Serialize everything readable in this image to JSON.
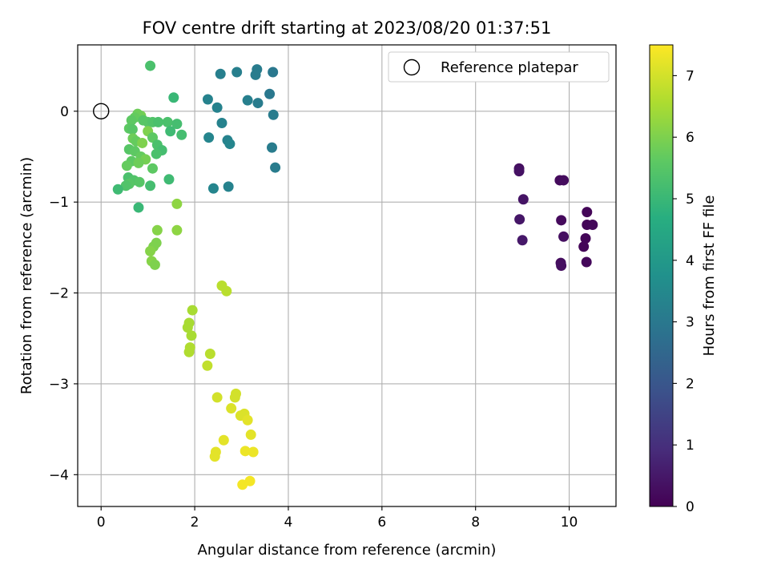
{
  "chart_data": {
    "type": "scatter",
    "title": "FOV centre drift starting at 2023/08/20 01:37:51",
    "xlabel": "Angular distance from reference (arcmin)",
    "ylabel": "Rotation from reference (arcmin)",
    "xlim": [
      -0.5,
      11
    ],
    "ylim": [
      -4.35,
      0.73
    ],
    "xticks": [
      0,
      2,
      4,
      6,
      8,
      10
    ],
    "yticks": [
      0,
      -1,
      -2,
      -3,
      -4
    ],
    "grid": true,
    "legend": {
      "placement": "top-right",
      "entries": [
        "Reference platepar"
      ]
    },
    "reference_point": {
      "x": 0,
      "y": 0
    },
    "colorbar": {
      "label": "Hours from first FF file",
      "range": [
        0,
        7.5
      ],
      "ticks": [
        0,
        1,
        2,
        3,
        4,
        5,
        6,
        7
      ],
      "colormap": "viridis"
    },
    "points": [
      {
        "x": 8.93,
        "y": -0.63,
        "h": 0.3
      },
      {
        "x": 8.93,
        "y": -0.66,
        "h": 0.35
      },
      {
        "x": 9.02,
        "y": -0.97,
        "h": 0.4
      },
      {
        "x": 8.94,
        "y": -1.19,
        "h": 0.45
      },
      {
        "x": 9.0,
        "y": -1.42,
        "h": 0.5
      },
      {
        "x": 9.8,
        "y": -0.76,
        "h": 0.2
      },
      {
        "x": 9.88,
        "y": -0.76,
        "h": 0.25
      },
      {
        "x": 9.83,
        "y": -1.2,
        "h": 0.2
      },
      {
        "x": 9.88,
        "y": -1.38,
        "h": 0.3
      },
      {
        "x": 9.82,
        "y": -1.67,
        "h": 0.25
      },
      {
        "x": 9.83,
        "y": -1.7,
        "h": 0.3
      },
      {
        "x": 10.38,
        "y": -1.11,
        "h": 0.1
      },
      {
        "x": 10.38,
        "y": -1.25,
        "h": 0.1
      },
      {
        "x": 10.5,
        "y": -1.25,
        "h": 0.15
      },
      {
        "x": 10.35,
        "y": -1.4,
        "h": 0.1
      },
      {
        "x": 10.31,
        "y": -1.49,
        "h": 0.1
      },
      {
        "x": 10.37,
        "y": -1.66,
        "h": 0.15
      },
      {
        "x": 2.55,
        "y": 0.41,
        "h": 3.2
      },
      {
        "x": 2.9,
        "y": 0.43,
        "h": 3.2
      },
      {
        "x": 3.33,
        "y": 0.46,
        "h": 3.1
      },
      {
        "x": 3.3,
        "y": 0.4,
        "h": 3.1
      },
      {
        "x": 3.67,
        "y": 0.43,
        "h": 3.0
      },
      {
        "x": 3.6,
        "y": 0.19,
        "h": 3.0
      },
      {
        "x": 3.13,
        "y": 0.12,
        "h": 3.2
      },
      {
        "x": 3.35,
        "y": 0.09,
        "h": 3.1
      },
      {
        "x": 2.28,
        "y": 0.13,
        "h": 3.3
      },
      {
        "x": 2.48,
        "y": 0.04,
        "h": 3.3
      },
      {
        "x": 3.68,
        "y": -0.04,
        "h": 3.1
      },
      {
        "x": 2.58,
        "y": -0.13,
        "h": 3.3
      },
      {
        "x": 2.3,
        "y": -0.29,
        "h": 3.4
      },
      {
        "x": 2.7,
        "y": -0.32,
        "h": 3.3
      },
      {
        "x": 2.75,
        "y": -0.36,
        "h": 3.4
      },
      {
        "x": 3.65,
        "y": -0.4,
        "h": 3.1
      },
      {
        "x": 3.72,
        "y": -0.62,
        "h": 3.1
      },
      {
        "x": 2.72,
        "y": -0.83,
        "h": 3.3
      },
      {
        "x": 2.4,
        "y": -0.85,
        "h": 3.4
      },
      {
        "x": 1.05,
        "y": 0.5,
        "h": 5.3
      },
      {
        "x": 1.55,
        "y": 0.15,
        "h": 5.0
      },
      {
        "x": 0.85,
        "y": -0.05,
        "h": 5.9
      },
      {
        "x": 0.78,
        "y": -0.03,
        "h": 5.8
      },
      {
        "x": 0.72,
        "y": -0.07,
        "h": 5.7
      },
      {
        "x": 0.65,
        "y": -0.1,
        "h": 5.6
      },
      {
        "x": 0.9,
        "y": -0.1,
        "h": 5.5
      },
      {
        "x": 1.0,
        "y": -0.12,
        "h": 5.5
      },
      {
        "x": 1.1,
        "y": -0.12,
        "h": 5.4
      },
      {
        "x": 1.22,
        "y": -0.12,
        "h": 5.3
      },
      {
        "x": 1.42,
        "y": -0.12,
        "h": 5.3
      },
      {
        "x": 1.62,
        "y": -0.14,
        "h": 5.2
      },
      {
        "x": 0.6,
        "y": -0.19,
        "h": 5.6
      },
      {
        "x": 0.67,
        "y": -0.2,
        "h": 5.5
      },
      {
        "x": 1.0,
        "y": -0.22,
        "h": 6.0
      },
      {
        "x": 1.48,
        "y": -0.22,
        "h": 5.1
      },
      {
        "x": 1.72,
        "y": -0.26,
        "h": 5.2
      },
      {
        "x": 1.1,
        "y": -0.29,
        "h": 5.6
      },
      {
        "x": 0.68,
        "y": -0.3,
        "h": 5.8
      },
      {
        "x": 0.75,
        "y": -0.33,
        "h": 5.7
      },
      {
        "x": 0.88,
        "y": -0.35,
        "h": 6.0
      },
      {
        "x": 1.2,
        "y": -0.37,
        "h": 5.3
      },
      {
        "x": 0.6,
        "y": -0.42,
        "h": 5.5
      },
      {
        "x": 1.3,
        "y": -0.43,
        "h": 5.2
      },
      {
        "x": 0.72,
        "y": -0.44,
        "h": 5.6
      },
      {
        "x": 1.18,
        "y": -0.47,
        "h": 5.3
      },
      {
        "x": 0.85,
        "y": -0.5,
        "h": 5.7
      },
      {
        "x": 0.95,
        "y": -0.53,
        "h": 5.9
      },
      {
        "x": 0.65,
        "y": -0.55,
        "h": 5.6
      },
      {
        "x": 0.8,
        "y": -0.57,
        "h": 5.8
      },
      {
        "x": 0.55,
        "y": -0.6,
        "h": 5.7
      },
      {
        "x": 1.1,
        "y": -0.63,
        "h": 5.6
      },
      {
        "x": 0.58,
        "y": -0.73,
        "h": 5.3
      },
      {
        "x": 0.7,
        "y": -0.76,
        "h": 5.4
      },
      {
        "x": 0.82,
        "y": -0.78,
        "h": 5.5
      },
      {
        "x": 1.45,
        "y": -0.75,
        "h": 5.1
      },
      {
        "x": 0.6,
        "y": -0.8,
        "h": 5.5
      },
      {
        "x": 0.53,
        "y": -0.82,
        "h": 5.4
      },
      {
        "x": 1.05,
        "y": -0.82,
        "h": 5.2
      },
      {
        "x": 0.36,
        "y": -0.86,
        "h": 5.1
      },
      {
        "x": 0.8,
        "y": -1.06,
        "h": 5.0
      },
      {
        "x": 1.62,
        "y": -1.02,
        "h": 6.2
      },
      {
        "x": 1.2,
        "y": -1.31,
        "h": 6.1
      },
      {
        "x": 1.62,
        "y": -1.31,
        "h": 6.2
      },
      {
        "x": 1.18,
        "y": -1.45,
        "h": 6.0
      },
      {
        "x": 1.12,
        "y": -1.49,
        "h": 6.0
      },
      {
        "x": 1.05,
        "y": -1.54,
        "h": 6.1
      },
      {
        "x": 1.08,
        "y": -1.65,
        "h": 6.1
      },
      {
        "x": 1.15,
        "y": -1.69,
        "h": 6.0
      },
      {
        "x": 2.58,
        "y": -1.92,
        "h": 6.7
      },
      {
        "x": 2.68,
        "y": -1.98,
        "h": 6.7
      },
      {
        "x": 1.95,
        "y": -2.19,
        "h": 6.5
      },
      {
        "x": 1.88,
        "y": -2.33,
        "h": 6.5
      },
      {
        "x": 1.85,
        "y": -2.38,
        "h": 6.5
      },
      {
        "x": 1.93,
        "y": -2.47,
        "h": 6.5
      },
      {
        "x": 1.9,
        "y": -2.6,
        "h": 6.6
      },
      {
        "x": 1.88,
        "y": -2.65,
        "h": 6.6
      },
      {
        "x": 2.33,
        "y": -2.67,
        "h": 6.7
      },
      {
        "x": 2.27,
        "y": -2.8,
        "h": 6.8
      },
      {
        "x": 2.88,
        "y": -3.11,
        "h": 7.0
      },
      {
        "x": 2.86,
        "y": -3.15,
        "h": 7.0
      },
      {
        "x": 2.48,
        "y": -3.15,
        "h": 7.0
      },
      {
        "x": 2.78,
        "y": -3.27,
        "h": 7.1
      },
      {
        "x": 3.06,
        "y": -3.33,
        "h": 7.1
      },
      {
        "x": 2.98,
        "y": -3.35,
        "h": 7.1
      },
      {
        "x": 3.13,
        "y": -3.4,
        "h": 7.2
      },
      {
        "x": 3.2,
        "y": -3.56,
        "h": 7.2
      },
      {
        "x": 2.62,
        "y": -3.62,
        "h": 7.2
      },
      {
        "x": 3.08,
        "y": -3.74,
        "h": 7.3
      },
      {
        "x": 3.25,
        "y": -3.75,
        "h": 7.3
      },
      {
        "x": 2.45,
        "y": -3.75,
        "h": 7.2
      },
      {
        "x": 2.43,
        "y": -3.8,
        "h": 7.2
      },
      {
        "x": 3.18,
        "y": -4.07,
        "h": 7.4
      },
      {
        "x": 3.02,
        "y": -4.11,
        "h": 7.4
      }
    ]
  }
}
